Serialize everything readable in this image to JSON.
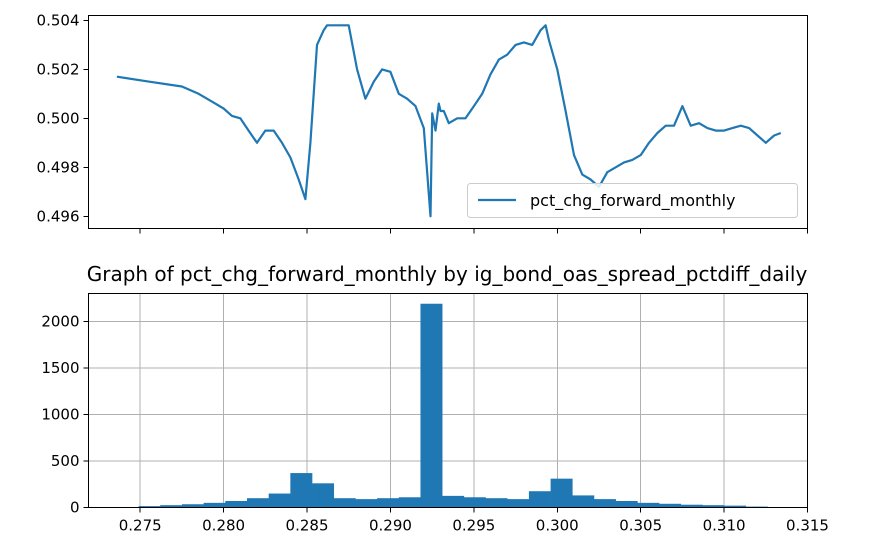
{
  "chart_data": [
    {
      "type": "line",
      "title": "",
      "xlabel": "",
      "ylabel": "",
      "ylim": [
        0.4955,
        0.5042
      ],
      "yticks": [
        "0.496",
        "0.498",
        "0.500",
        "0.502",
        "0.504"
      ],
      "grid": false,
      "legend": {
        "placement": "lower-right",
        "entries": [
          "pct_chg_forward_monthly"
        ]
      },
      "color": "#1f77b4",
      "series": [
        {
          "name": "pct_chg_forward_monthly",
          "x": [
            0.2736,
            0.2755,
            0.2775,
            0.2785,
            0.2795,
            0.28,
            0.2805,
            0.281,
            0.2815,
            0.282,
            0.2825,
            0.283,
            0.2835,
            0.284,
            0.2845,
            0.2849,
            0.2852,
            0.2856,
            0.286,
            0.2862,
            0.2865,
            0.287,
            0.2875,
            0.288,
            0.2885,
            0.289,
            0.2895,
            0.29,
            0.2905,
            0.291,
            0.2915,
            0.292,
            0.2924,
            0.2925,
            0.2927,
            0.2929,
            0.293,
            0.2932,
            0.2935,
            0.294,
            0.2945,
            0.295,
            0.2955,
            0.296,
            0.2965,
            0.297,
            0.2975,
            0.298,
            0.2985,
            0.299,
            0.2993,
            0.2995,
            0.3,
            0.3005,
            0.301,
            0.3015,
            0.302,
            0.3025,
            0.303,
            0.3035,
            0.304,
            0.3045,
            0.305,
            0.3055,
            0.306,
            0.3065,
            0.307,
            0.3075,
            0.308,
            0.3085,
            0.309,
            0.3095,
            0.31,
            0.3105,
            0.311,
            0.3115,
            0.312,
            0.3125,
            0.313,
            0.3134
          ],
          "y": [
            0.5017,
            0.5015,
            0.5013,
            0.501,
            0.5006,
            0.5004,
            0.5001,
            0.5,
            0.4995,
            0.499,
            0.4995,
            0.4995,
            0.499,
            0.4984,
            0.4975,
            0.4967,
            0.499,
            0.503,
            0.5036,
            0.5038,
            0.5038,
            0.5038,
            0.5038,
            0.502,
            0.5008,
            0.5015,
            0.502,
            0.5019,
            0.501,
            0.5008,
            0.5005,
            0.4996,
            0.496,
            0.5002,
            0.4995,
            0.5006,
            0.5003,
            0.5003,
            0.4998,
            0.5,
            0.5,
            0.5005,
            0.501,
            0.5018,
            0.5024,
            0.5026,
            0.503,
            0.5031,
            0.503,
            0.5036,
            0.5038,
            0.5032,
            0.502,
            0.5003,
            0.4985,
            0.4977,
            0.4975,
            0.4972,
            0.4978,
            0.498,
            0.4982,
            0.4983,
            0.4985,
            0.499,
            0.4994,
            0.4997,
            0.4997,
            0.5005,
            0.4997,
            0.4998,
            0.4996,
            0.4995,
            0.4995,
            0.4996,
            0.4997,
            0.4996,
            0.4993,
            0.499,
            0.4993,
            0.4994
          ]
        }
      ]
    },
    {
      "type": "bar",
      "title": "Graph of pct_chg_forward_monthly by ig_bond_oas_spread_pctdiff_daily",
      "xlabel": "",
      "ylabel": "",
      "xlim": [
        0.2719,
        0.315
      ],
      "ylim": [
        0,
        2300
      ],
      "xticks": [
        "0.275",
        "0.280",
        "0.285",
        "0.290",
        "0.295",
        "0.300",
        "0.305",
        "0.310",
        "0.315"
      ],
      "yticks": [
        "0",
        "500",
        "1000",
        "1500",
        "2000"
      ],
      "grid": true,
      "color": "#1f77b4",
      "bin_edges": [
        0.2736,
        0.2749,
        0.2762,
        0.2775,
        0.2788,
        0.2801,
        0.2814,
        0.2827,
        0.284,
        0.2853,
        0.2866,
        0.2879,
        0.2892,
        0.2905,
        0.2918,
        0.2931,
        0.2944,
        0.2957,
        0.297,
        0.2983,
        0.2996,
        0.3009,
        0.3022,
        0.3035,
        0.3048,
        0.3061,
        0.3074,
        0.3087,
        0.31,
        0.3113,
        0.3126,
        0.3139
      ],
      "values": [
        5,
        15,
        25,
        35,
        50,
        70,
        100,
        150,
        370,
        260,
        100,
        90,
        100,
        110,
        2190,
        125,
        110,
        100,
        90,
        175,
        310,
        130,
        90,
        70,
        50,
        40,
        30,
        25,
        20,
        10,
        5
      ]
    }
  ]
}
